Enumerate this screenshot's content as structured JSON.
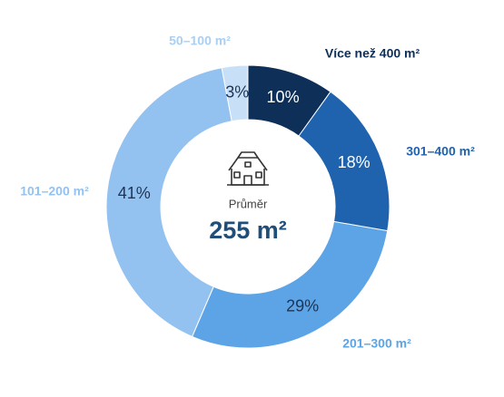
{
  "chart_data": {
    "type": "donut",
    "categories": [
      "Více než 400 m²",
      "301–400 m²",
      "201–300 m²",
      "101–200 m²",
      "50–100 m²"
    ],
    "values": [
      10,
      18,
      29,
      41,
      3
    ],
    "value_labels": [
      "10%",
      "18%",
      "29%",
      "41%",
      "3%"
    ],
    "colors": [
      "#0e2f58",
      "#1f62ad",
      "#5ca4e6",
      "#93c2f0",
      "#c8e0f7"
    ],
    "label_colors": [
      "#0e2f58",
      "#1f62ad",
      "#5ca4e6",
      "#93c2f0",
      "#a9cff2"
    ],
    "center_label": "Průměr",
    "center_value": "255 m²"
  }
}
